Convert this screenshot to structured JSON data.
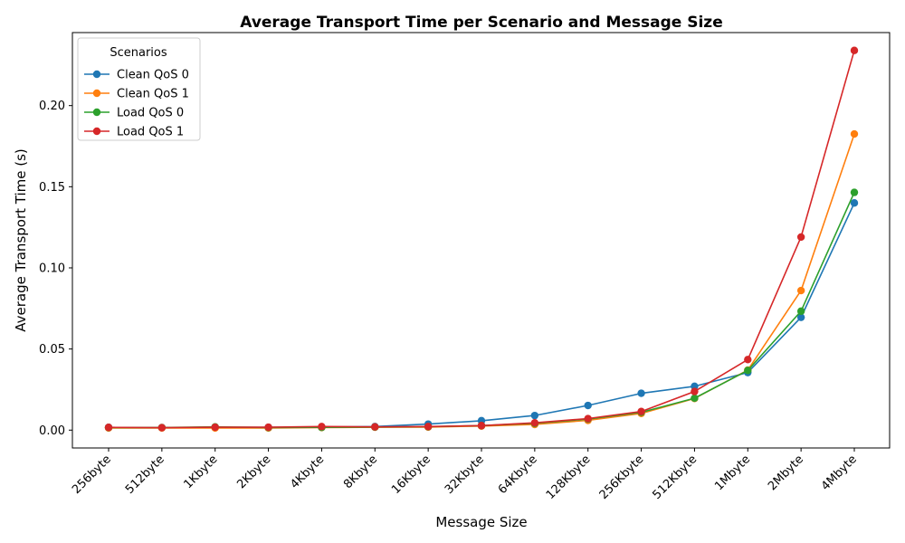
{
  "chart_data": {
    "type": "line",
    "title": "Average Transport Time per Scenario and Message Size",
    "xlabel": "Message Size",
    "ylabel": "Average Transport Time (s)",
    "categories": [
      "256byte",
      "512byte",
      "1Kbyte",
      "2Kbyte",
      "4Kbyte",
      "8Kbyte",
      "16Kbyte",
      "32Kbyte",
      "64Kbyte",
      "128Kbyte",
      "256Kbyte",
      "512Kbyte",
      "1Mbyte",
      "2Mbyte",
      "4Mbyte"
    ],
    "ylim": [
      -0.011,
      0.245
    ],
    "yticks": [
      0.0,
      0.05,
      0.1,
      0.15,
      0.2
    ],
    "ytick_labels": [
      "0.00",
      "0.05",
      "0.10",
      "0.15",
      "0.20"
    ],
    "grid": false,
    "legend": {
      "title": "Scenarios",
      "position": "top-left"
    },
    "series": [
      {
        "name": "Clean QoS 0",
        "color": "#1f77b4",
        "values": [
          0.0017,
          0.0015,
          0.0018,
          0.0017,
          0.0019,
          0.0022,
          0.0037,
          0.0058,
          0.009,
          0.0152,
          0.0227,
          0.027,
          0.0355,
          0.0695,
          0.14
        ]
      },
      {
        "name": "Clean QoS 1",
        "color": "#ff7f0e",
        "values": [
          0.0013,
          0.0013,
          0.0013,
          0.0013,
          0.0016,
          0.0018,
          0.0019,
          0.0025,
          0.0035,
          0.006,
          0.0103,
          0.0195,
          0.037,
          0.086,
          0.1825
        ]
      },
      {
        "name": "Load QoS 0",
        "color": "#2ca02c",
        "values": [
          0.0016,
          0.0016,
          0.002,
          0.0016,
          0.0017,
          0.0019,
          0.0021,
          0.0028,
          0.0042,
          0.0068,
          0.011,
          0.0197,
          0.0368,
          0.0733,
          0.1465
        ]
      },
      {
        "name": "Load QoS 1",
        "color": "#d62728",
        "values": [
          0.0017,
          0.0015,
          0.0018,
          0.0018,
          0.0022,
          0.002,
          0.0022,
          0.0028,
          0.0045,
          0.0071,
          0.0115,
          0.0238,
          0.0435,
          0.119,
          0.234
        ]
      }
    ]
  }
}
